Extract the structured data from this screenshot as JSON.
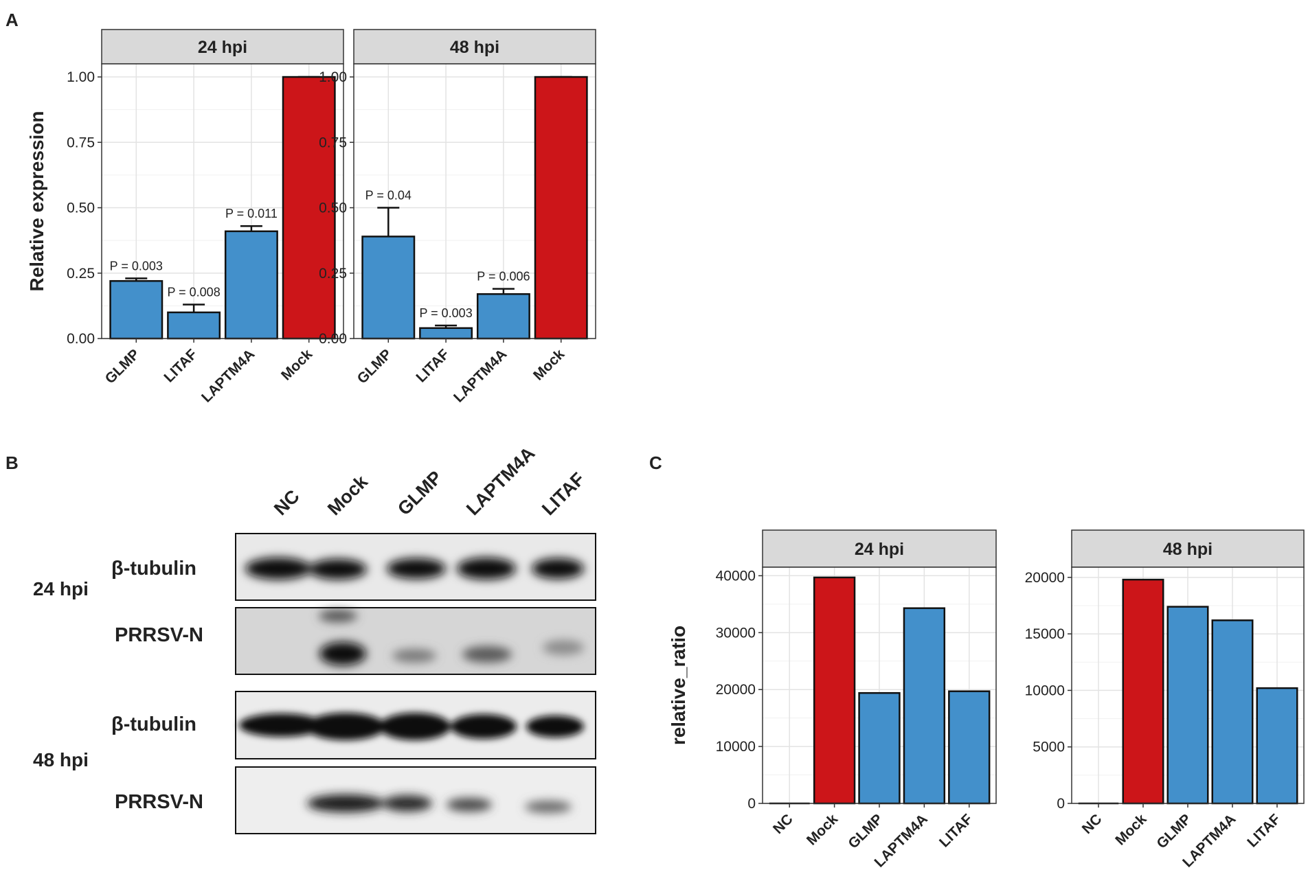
{
  "panels": {
    "a_letter": "A",
    "b_letter": "B",
    "c_letter": "C"
  },
  "blot": {
    "lanes": [
      "NC",
      "Mock",
      "GLMP",
      "LAPTM4A",
      "LITAF"
    ],
    "timepoints": [
      "24 hpi",
      "48 hpi"
    ],
    "rows": [
      "β-tubulin",
      "PRRSV-N",
      "β-tubulin",
      "PRRSV-N"
    ]
  },
  "chart_data": [
    {
      "panel": "A",
      "type": "bar",
      "facets": [
        "24 hpi",
        "48 hpi"
      ],
      "categories": [
        "GLMP",
        "LITAF",
        "LAPTM4A",
        "Mock"
      ],
      "values": [
        [
          0.22,
          0.1,
          0.41,
          1.0
        ],
        [
          0.39,
          0.04,
          0.17,
          1.0
        ]
      ],
      "errors": [
        [
          0.01,
          0.03,
          0.02,
          0.0
        ],
        [
          0.11,
          0.01,
          0.02,
          0.0
        ]
      ],
      "annotations": [
        [
          "P = 0.003",
          "P = 0.008",
          "P = 0.011",
          ""
        ],
        [
          "P = 0.04",
          "P = 0.003",
          "P = 0.006",
          ""
        ]
      ],
      "ylabel": "Relative expression",
      "ylim": [
        0,
        1.05
      ],
      "yticks": [
        0,
        0.25,
        0.5,
        0.75,
        1.0
      ],
      "ytick_labels": [
        "0.00",
        "0.25",
        "0.50",
        "0.75",
        "1.00"
      ],
      "colors": {
        "treatment": "#4390cb",
        "mock": "#cc1519"
      },
      "grid": true
    },
    {
      "panel": "C",
      "type": "bar",
      "facets": [
        "24 hpi",
        "48 hpi"
      ],
      "categories": [
        "NC",
        "Mock",
        "GLMP",
        "LAPTM4A",
        "LITAF"
      ],
      "values": [
        [
          0,
          39700,
          19400,
          34300,
          19700
        ],
        [
          0,
          19800,
          17400,
          16200,
          10200
        ]
      ],
      "ylabel": "relative_ratio",
      "ylim": [
        [
          0,
          41500
        ],
        [
          0,
          20900
        ]
      ],
      "yticks": [
        [
          0,
          10000,
          20000,
          30000,
          40000
        ],
        [
          0,
          5000,
          10000,
          15000,
          20000
        ]
      ],
      "colors": {
        "treatment": "#4390cb",
        "mock": "#cc1519"
      },
      "grid": true
    }
  ]
}
